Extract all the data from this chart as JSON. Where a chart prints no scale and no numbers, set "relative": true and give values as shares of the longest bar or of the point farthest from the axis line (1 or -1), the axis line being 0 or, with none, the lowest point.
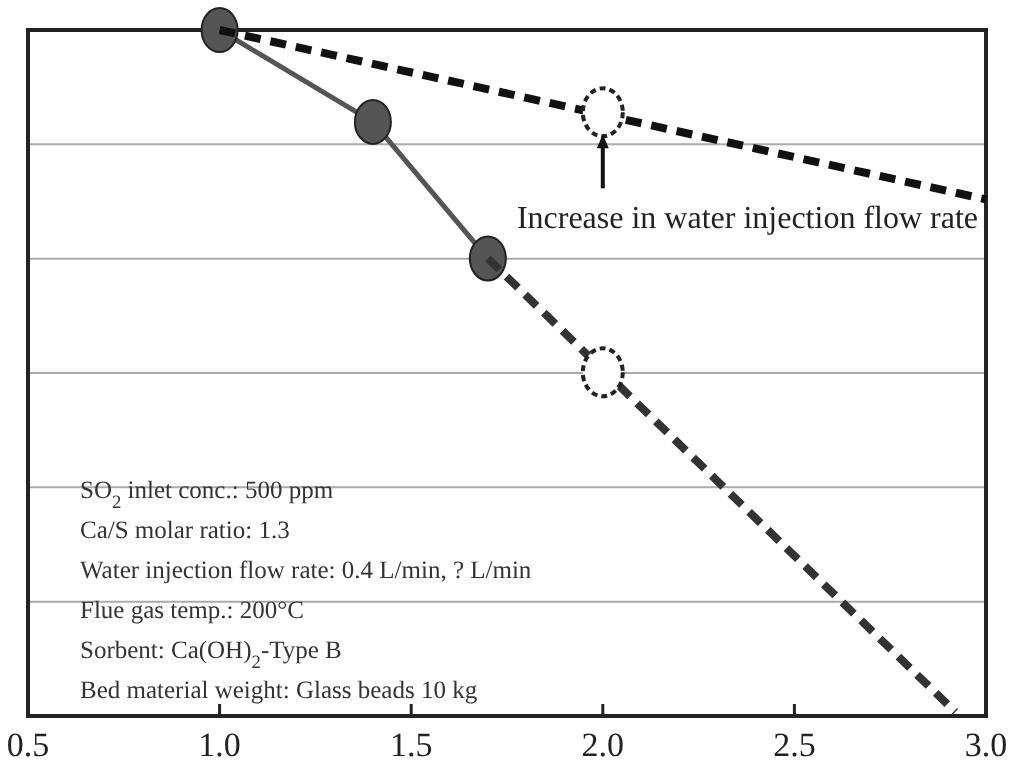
{
  "chart_data": {
    "type": "line",
    "relative": true,
    "xlim": [
      0.5,
      3.0
    ],
    "xticks": [
      0.5,
      {
        "value": 1,
        "label": "1.0"
      },
      1.5,
      {
        "value": 2,
        "label": "2.0"
      },
      2.5,
      {
        "value": 3,
        "label": "3.0"
      }
    ],
    "grid": "y",
    "series": [
      {
        "color": "#555555",
        "x": [
          1.0,
          1.4,
          1.7
        ],
        "values": [
          1,
          0.866,
          0.667
        ],
        "marker": "circle",
        "line_style": "solid"
      },
      {
        "color": "#111111",
        "x": [
          1.0,
          3.0
        ],
        "values": [
          1,
          0.753
        ],
        "marker": "none",
        "line_style": "dashed"
      },
      {
        "color": "#333333",
        "x": [
          1.7,
          2.92
        ],
        "values": [
          0.667,
          0.006
        ],
        "marker": "none",
        "line_style": "dashed"
      },
      {
        "type": "scatter",
        "color": "#ffffff",
        "x": [
          2.0,
          2.0
        ],
        "values": [
          0.88,
          0.501
        ],
        "marker": "circle"
      }
    ],
    "annotations": [
      {
        "text": "Increase in water injection flow rate",
        "x": 2.0,
        "y": 0.88
      },
      "SO$_{2}$ inlet conc.: 500 ppm",
      "Ca/S molar ratio: 1.3",
      "Water injection flow rate: 0.4 L/min, ? L/min",
      "Flue gas temp.: 200°C",
      "Sorbent: Ca(OH)$_{2}$-Type B",
      "Bed material weight: Glass beads 10 kg"
    ]
  }
}
